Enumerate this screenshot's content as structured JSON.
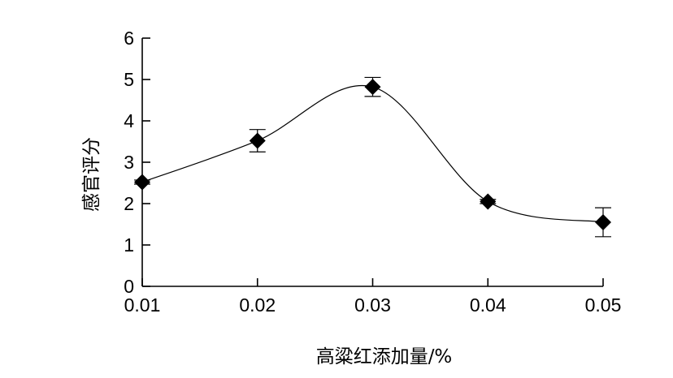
{
  "chart_data": {
    "type": "line",
    "xlabel": "高粱红添加量/%",
    "ylabel": "感官评分",
    "x": [
      0.01,
      0.02,
      0.03,
      0.04,
      0.05
    ],
    "x_ticks": [
      "0.01",
      "0.02",
      "0.03",
      "0.04",
      "0.05"
    ],
    "y_ticks": [
      "0",
      "1",
      "2",
      "3",
      "4",
      "5",
      "6"
    ],
    "ylim": [
      0,
      6
    ],
    "xlim": [
      0.01,
      0.05
    ],
    "grid": false,
    "series": [
      {
        "values": [
          2.52,
          3.52,
          4.82,
          2.05,
          1.55
        ],
        "error": [
          0.05,
          0.27,
          0.23,
          0.05,
          0.35
        ],
        "marker": "diamond",
        "smooth": true,
        "color": "#000000"
      }
    ]
  }
}
